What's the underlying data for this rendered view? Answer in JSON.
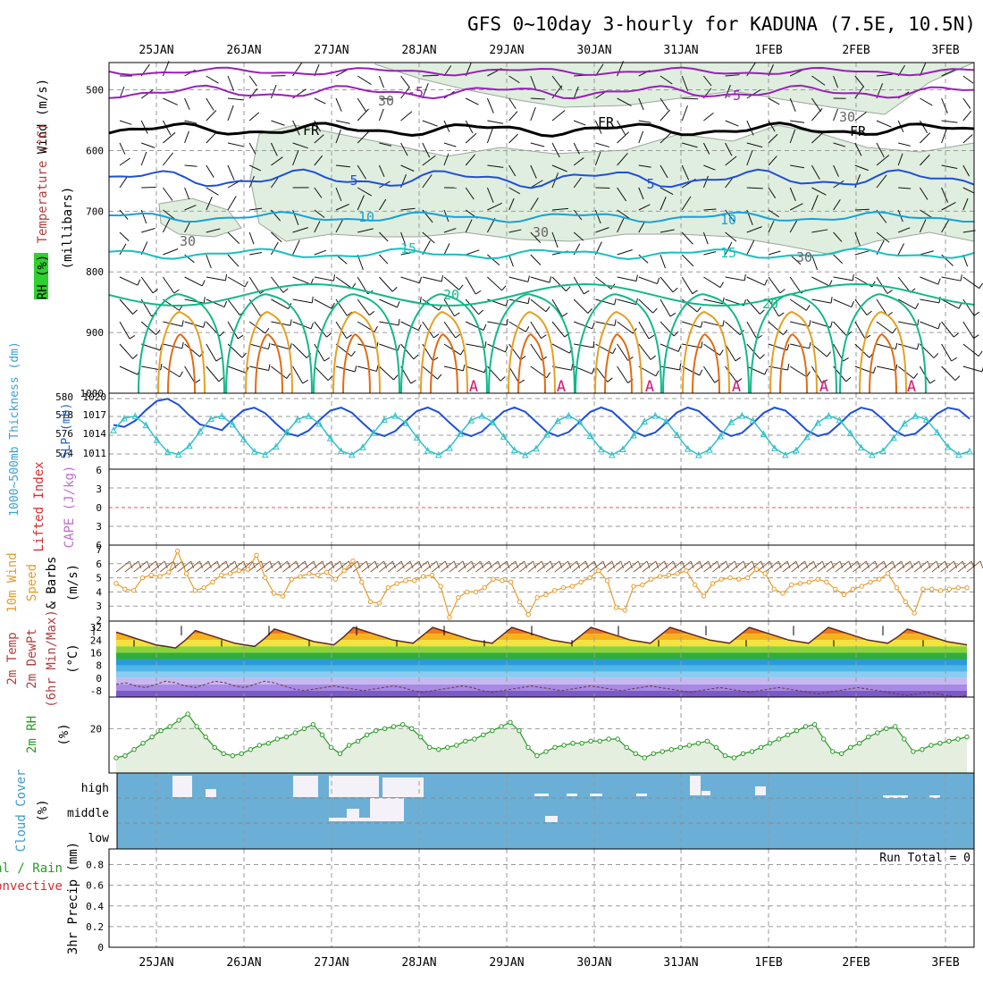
{
  "title": "GFS 0~10day 3-hourly for KADUNA (7.5E, 10.5N)",
  "dates": [
    "25JAN",
    "26JAN",
    "27JAN",
    "28JAN",
    "29JAN",
    "30JAN",
    "31JAN",
    "1FEB",
    "2FEB",
    "3FEB"
  ],
  "panels": {
    "upper": {
      "labels": {
        "wind": "Wind (m/s)",
        "temp": "Temperature (°C)",
        "rh": "RH (%)",
        "pres": "(millibars)"
      },
      "ticks": [
        "500",
        "600",
        "700",
        "800",
        "900",
        "1000"
      ],
      "contour_labels": {
        "freezing": "FR",
        "t_m5": "-5",
        "t5": "5",
        "t10": "10",
        "t15": "15",
        "t20": "20",
        "rh30": "30",
        "lcl": "A"
      }
    },
    "slp": {
      "labels": {
        "thick": "1000~500mb Thickness (dm)",
        "slp": "SLP (mb)"
      },
      "ticks_left": [
        "580",
        "578",
        "576",
        "574"
      ],
      "ticks_right": [
        "1020",
        "1017",
        "1014",
        "1011"
      ]
    },
    "cape": {
      "labels": {
        "li": "Lifted Index",
        "cape": "CAPE (J/kg)"
      },
      "ticks": [
        "6",
        "3",
        "0",
        "3",
        "6"
      ]
    },
    "wind10": {
      "labels": {
        "a": "10m Wind",
        "b": "Speed",
        "c": "& Barbs",
        "unit": "(m/s)"
      },
      "ticks": [
        "7",
        "6",
        "5",
        "4",
        "3",
        "2"
      ]
    },
    "temp2m": {
      "labels": {
        "a": "2m Temp",
        "b": "2m DewPt",
        "c": "(6hr Min/Max)",
        "unit": "(°C)"
      },
      "ticks": [
        "32",
        "24",
        "16",
        "8",
        "0",
        "-8"
      ]
    },
    "rh2m": {
      "labels": {
        "a": "2m RH",
        "unit": "(%)"
      },
      "ticks": [
        "20"
      ]
    },
    "cloud": {
      "labels": {
        "a": "Cloud Cover",
        "unit": "(%)"
      },
      "levels": [
        "high",
        "middle",
        "low"
      ]
    },
    "precip": {
      "labels": {
        "a": "Total / Rain",
        "b": "Convective",
        "c": "3hr Precip (mm)"
      },
      "ticks": [
        "0.8",
        "0.6",
        "0.4",
        "0.2",
        "0"
      ],
      "run_total": "Run Total = 0"
    }
  },
  "colors": {
    "purple": "#9a1fb8",
    "black": "#000000",
    "blue": "#1f4fd8",
    "lightblue": "#16a2d8",
    "cyan": "#17c0c0",
    "teal": "#12b889",
    "orange": "#e5a023",
    "darkorange": "#e06b12",
    "magenta": "#d0167a",
    "rhfill": "#dfeede",
    "cloudbg": "#6bafd6",
    "rhgreen": "#2a9a25",
    "windorange": "#e89a2a",
    "slpcyan": "#30c0c8"
  },
  "chart_data": [
    {
      "type": "heatmap",
      "title": "Wind / Temperature / RH vs pressure",
      "ylabel": "millibars",
      "ylim": [
        1000,
        450
      ],
      "temperature_contours_C": [
        -5,
        "FR",
        5,
        10,
        15,
        20
      ],
      "rh_contour_pct": 30
    },
    {
      "type": "line",
      "x": [
        "25JAN",
        "26JAN",
        "27JAN",
        "28JAN",
        "29JAN",
        "30JAN",
        "31JAN",
        "1FEB",
        "2FEB",
        "3FEB"
      ],
      "series": [
        {
          "name": "1000~500mb Thickness (dm)",
          "values": [
            579.0,
            576.5,
            577.8,
            577.0,
            576.9,
            576.3,
            576.0,
            576.4,
            576.0,
            576.2
          ]
        },
        {
          "name": "SLP (mb)",
          "values": [
            1011.2,
            1011.5,
            1011.8,
            1013.0,
            1017.2,
            1017.7,
            1018.3,
            1018.0,
            1017.5,
            1015.8
          ]
        }
      ],
      "ylim_left": [
        573,
        580
      ],
      "ylim_right": [
        1009,
        1020
      ]
    },
    {
      "type": "line",
      "series": [
        {
          "name": "Lifted Index",
          "values": []
        },
        {
          "name": "CAPE (J/kg)",
          "values": []
        }
      ],
      "ylim": [
        6,
        -6
      ]
    },
    {
      "type": "line",
      "ylabel": "(m/s)",
      "ylim": [
        2,
        7
      ],
      "series": [
        {
          "name": "10m Wind Speed",
          "values": [
            4.6,
            4.2,
            4.1,
            5.0,
            5.2,
            5.1,
            5.4,
            6.9,
            5.3,
            4.1,
            4.3,
            4.7,
            5.2,
            5.3,
            5.5,
            5.6,
            6.6,
            5.0,
            3.9,
            3.7,
            4.9,
            5.1,
            5.3,
            5.2,
            5.4,
            4.9,
            5.5,
            6.2,
            4.7,
            3.3,
            3.2,
            4.3,
            4.6,
            4.8,
            4.8,
            5.1,
            5.2,
            4.4,
            2.2,
            3.6,
            4.0,
            4.0,
            4.3,
            4.9,
            4.8,
            4.7,
            3.3,
            2.4,
            3.6,
            3.8,
            4.1,
            4.3,
            4.4,
            4.7,
            5.0,
            5.5,
            4.8,
            2.9,
            2.7,
            4.4,
            4.5,
            4.9,
            5.1,
            5.2,
            5.3,
            5.5,
            4.5,
            3.7,
            4.6,
            4.9,
            5.0,
            4.9,
            5.0,
            5.6,
            5.3,
            4.2,
            3.9,
            4.5,
            4.6,
            4.7,
            4.9,
            4.7,
            4.2,
            3.8,
            4.2,
            4.4,
            4.7,
            4.9,
            5.3,
            4.3,
            3.3,
            2.5,
            4.2,
            4.2,
            4.1,
            4.2,
            4.3,
            4.3
          ]
        }
      ]
    },
    {
      "type": "line",
      "ylabel": "(°C)",
      "ylim": [
        -12,
        36
      ],
      "series": [
        {
          "name": "2m Temp",
          "values": [
            29,
            27,
            25,
            23,
            21,
            20,
            19,
            24,
            30,
            28,
            26,
            24,
            22,
            21,
            20,
            25,
            31,
            29,
            27,
            25,
            23,
            22,
            21,
            26,
            32,
            30,
            28,
            26,
            24,
            23,
            22,
            27,
            32,
            30,
            28,
            26,
            24,
            23,
            22,
            27,
            32,
            30,
            28,
            26,
            24,
            23,
            22,
            27,
            32,
            30,
            28,
            26,
            24,
            23,
            22,
            27,
            32,
            30,
            28,
            26,
            24,
            23,
            22,
            27,
            32,
            30,
            28,
            26,
            24,
            23,
            22,
            27,
            32,
            30,
            28,
            26,
            24,
            23,
            22,
            26,
            31,
            29,
            27,
            25,
            23,
            22,
            21
          ]
        },
        {
          "name": "2m DewPt",
          "values": [
            -4,
            -3,
            -5,
            -6,
            -4,
            -2,
            -3,
            -5,
            -6,
            -4,
            -2,
            -3,
            -5,
            -6,
            -4,
            -2,
            -3,
            -5,
            -7,
            -8,
            -7,
            -6,
            -5,
            -6,
            -7,
            -8,
            -7,
            -6,
            -5,
            -6,
            -8,
            -9,
            -8,
            -7,
            -6,
            -5,
            -6,
            -8,
            -9,
            -8,
            -7,
            -6,
            -5,
            -6,
            -7,
            -8,
            -7,
            -6,
            -5,
            -6,
            -7,
            -8,
            -7,
            -6,
            -5,
            -6,
            -7,
            -8,
            -9,
            -8,
            -7,
            -6,
            -7,
            -8,
            -9,
            -8,
            -7,
            -6,
            -7,
            -8,
            -9,
            -10,
            -9,
            -8,
            -7,
            -6,
            -7,
            -8,
            -9,
            -10,
            -11,
            -10,
            -9,
            -10,
            -11,
            -12,
            -11
          ]
        }
      ]
    },
    {
      "type": "area",
      "ylabel": "(%)",
      "series": [
        {
          "name": "2m RH",
          "values": [
            6,
            7,
            10,
            13,
            16,
            19,
            21,
            24,
            27,
            21,
            16,
            11,
            8,
            7,
            8,
            10,
            12,
            13,
            15,
            16,
            18,
            20,
            22,
            17,
            11,
            8,
            12,
            14,
            17,
            19,
            20,
            21,
            22,
            20,
            16,
            11,
            10,
            11,
            12,
            14,
            15,
            17,
            19,
            21,
            23,
            19,
            11,
            7,
            9,
            11,
            12,
            13,
            13,
            14,
            14,
            15,
            15,
            11,
            8,
            6,
            8,
            9,
            10,
            11,
            12,
            13,
            14,
            11,
            7,
            6,
            8,
            9,
            11,
            13,
            15,
            17,
            19,
            21,
            22,
            15,
            9,
            8,
            11,
            13,
            16,
            18,
            20,
            21,
            15,
            9,
            10,
            12,
            13,
            14,
            15,
            16
          ]
        }
      ]
    },
    {
      "type": "heatmap",
      "ylabel": "Cloud Cover (%)",
      "categories": [
        "high",
        "middle",
        "low"
      ]
    },
    {
      "type": "bar",
      "ylabel": "3hr Precip (mm)",
      "ylim": [
        0,
        1
      ],
      "series": [
        {
          "name": "Total / Rain",
          "values": []
        },
        {
          "name": "Convective",
          "values": []
        }
      ]
    }
  ]
}
